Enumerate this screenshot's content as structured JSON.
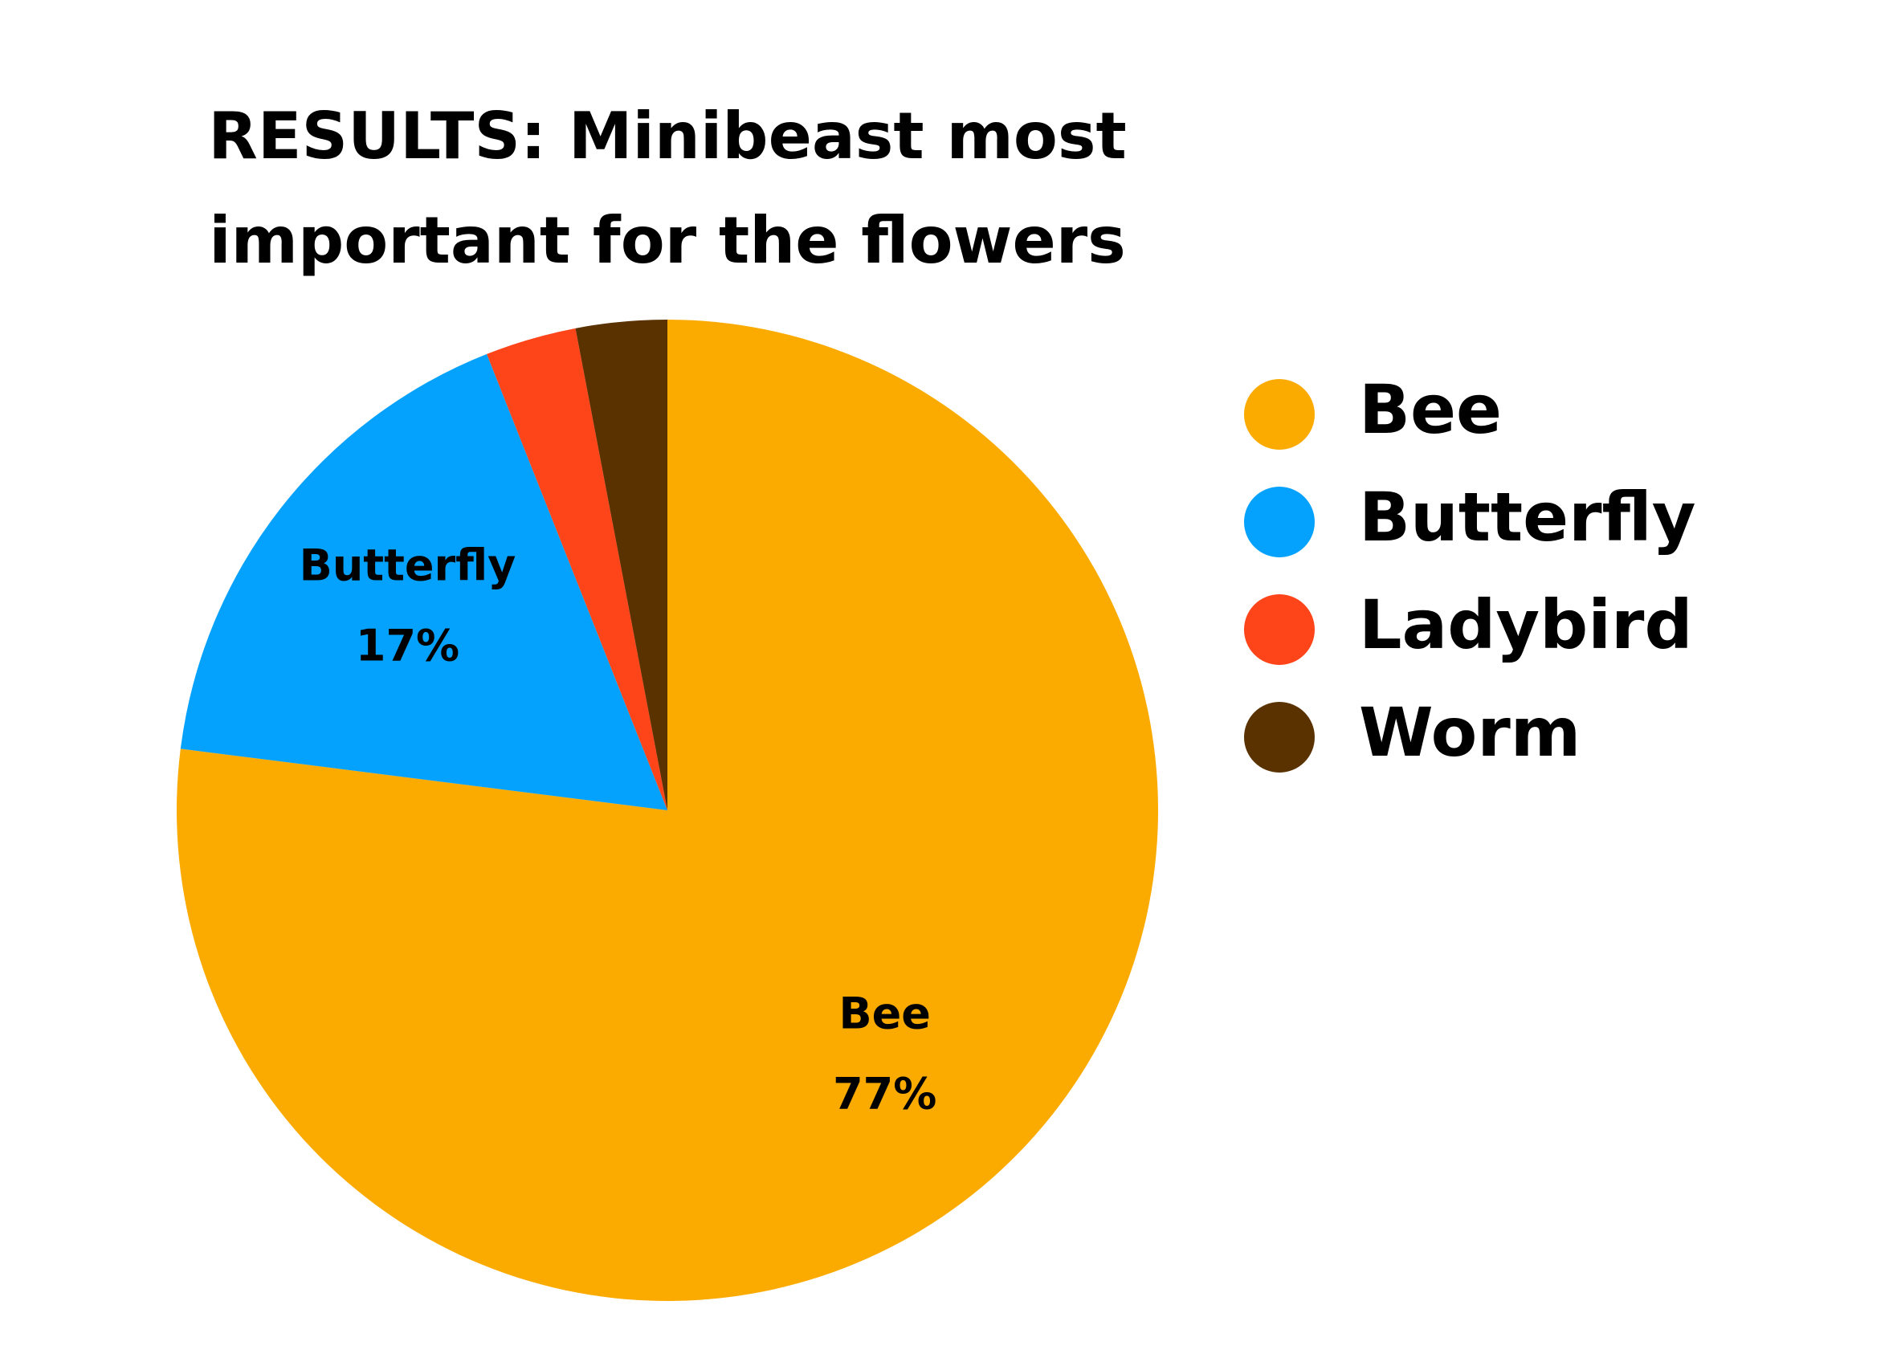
{
  "chart_data": {
    "type": "pie",
    "title": "RESULTS: Minibeast most important for the flowers",
    "categories": [
      "Bee",
      "Butterfly",
      "Ladybird",
      "Worm"
    ],
    "values": [
      77,
      17,
      3,
      3
    ],
    "value_labels": [
      "77%",
      "17%",
      null,
      null
    ],
    "colors": [
      "#fbab00",
      "#05a2fd",
      "#fe4419",
      "#5a3200"
    ],
    "legend": "right"
  }
}
